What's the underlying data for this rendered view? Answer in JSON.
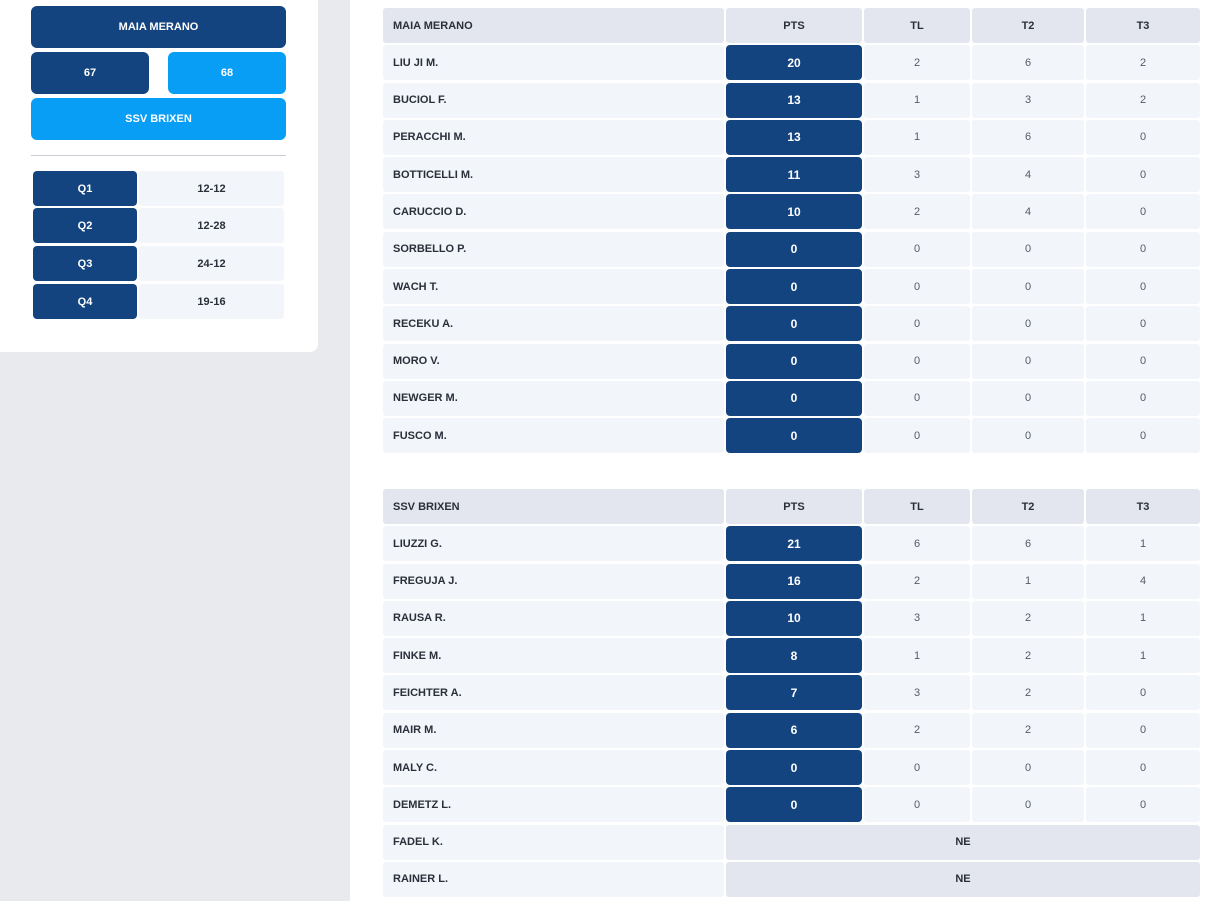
{
  "scoreboard": {
    "home_team": "MAIA MERANO",
    "home_score": "67",
    "away_score": "68",
    "away_team": "SSV BRIXEN",
    "quarters": [
      {
        "label": "Q1",
        "score": "12-12"
      },
      {
        "label": "Q2",
        "score": "12-28"
      },
      {
        "label": "Q3",
        "score": "24-12"
      },
      {
        "label": "Q4",
        "score": "19-16"
      }
    ]
  },
  "tables": [
    {
      "team": "MAIA MERANO",
      "columns": [
        "PTS",
        "TL",
        "T2",
        "T3"
      ],
      "players": [
        {
          "name": "LIU JI M.",
          "pts": "20",
          "tl": "2",
          "t2": "6",
          "t3": "2"
        },
        {
          "name": "BUCIOL F.",
          "pts": "13",
          "tl": "1",
          "t2": "3",
          "t3": "2"
        },
        {
          "name": "PERACCHI M.",
          "pts": "13",
          "tl": "1",
          "t2": "6",
          "t3": "0"
        },
        {
          "name": "BOTTICELLI M.",
          "pts": "11",
          "tl": "3",
          "t2": "4",
          "t3": "0"
        },
        {
          "name": "CARUCCIO D.",
          "pts": "10",
          "tl": "2",
          "t2": "4",
          "t3": "0"
        },
        {
          "name": "SORBELLO P.",
          "pts": "0",
          "tl": "0",
          "t2": "0",
          "t3": "0"
        },
        {
          "name": "WACH T.",
          "pts": "0",
          "tl": "0",
          "t2": "0",
          "t3": "0"
        },
        {
          "name": "RECEKU A.",
          "pts": "0",
          "tl": "0",
          "t2": "0",
          "t3": "0"
        },
        {
          "name": "MORO V.",
          "pts": "0",
          "tl": "0",
          "t2": "0",
          "t3": "0"
        },
        {
          "name": "NEWGER M.",
          "pts": "0",
          "tl": "0",
          "t2": "0",
          "t3": "0"
        },
        {
          "name": "FUSCO M.",
          "pts": "0",
          "tl": "0",
          "t2": "0",
          "t3": "0"
        }
      ]
    },
    {
      "team": "SSV BRIXEN",
      "columns": [
        "PTS",
        "TL",
        "T2",
        "T3"
      ],
      "players": [
        {
          "name": "LIUZZI G.",
          "pts": "21",
          "tl": "6",
          "t2": "6",
          "t3": "1"
        },
        {
          "name": "FREGUJA J.",
          "pts": "16",
          "tl": "2",
          "t2": "1",
          "t3": "4"
        },
        {
          "name": "RAUSA R.",
          "pts": "10",
          "tl": "3",
          "t2": "2",
          "t3": "1"
        },
        {
          "name": "FINKE M.",
          "pts": "8",
          "tl": "1",
          "t2": "2",
          "t3": "1"
        },
        {
          "name": "FEICHTER A.",
          "pts": "7",
          "tl": "3",
          "t2": "2",
          "t3": "0"
        },
        {
          "name": "MAIR M.",
          "pts": "6",
          "tl": "2",
          "t2": "2",
          "t3": "0"
        },
        {
          "name": "MALY C.",
          "pts": "0",
          "tl": "0",
          "t2": "0",
          "t3": "0"
        },
        {
          "name": "DEMETZ L.",
          "pts": "0",
          "tl": "0",
          "t2": "0",
          "t3": "0"
        },
        {
          "name": "FADEL K.",
          "status": "NE"
        },
        {
          "name": "RAINER L.",
          "status": "NE"
        }
      ]
    }
  ],
  "colors": {
    "dark_blue": "#13447f",
    "light_blue": "#089ef5",
    "header_bg": "#e3e6ee",
    "cell_bg": "#f2f5f9"
  }
}
